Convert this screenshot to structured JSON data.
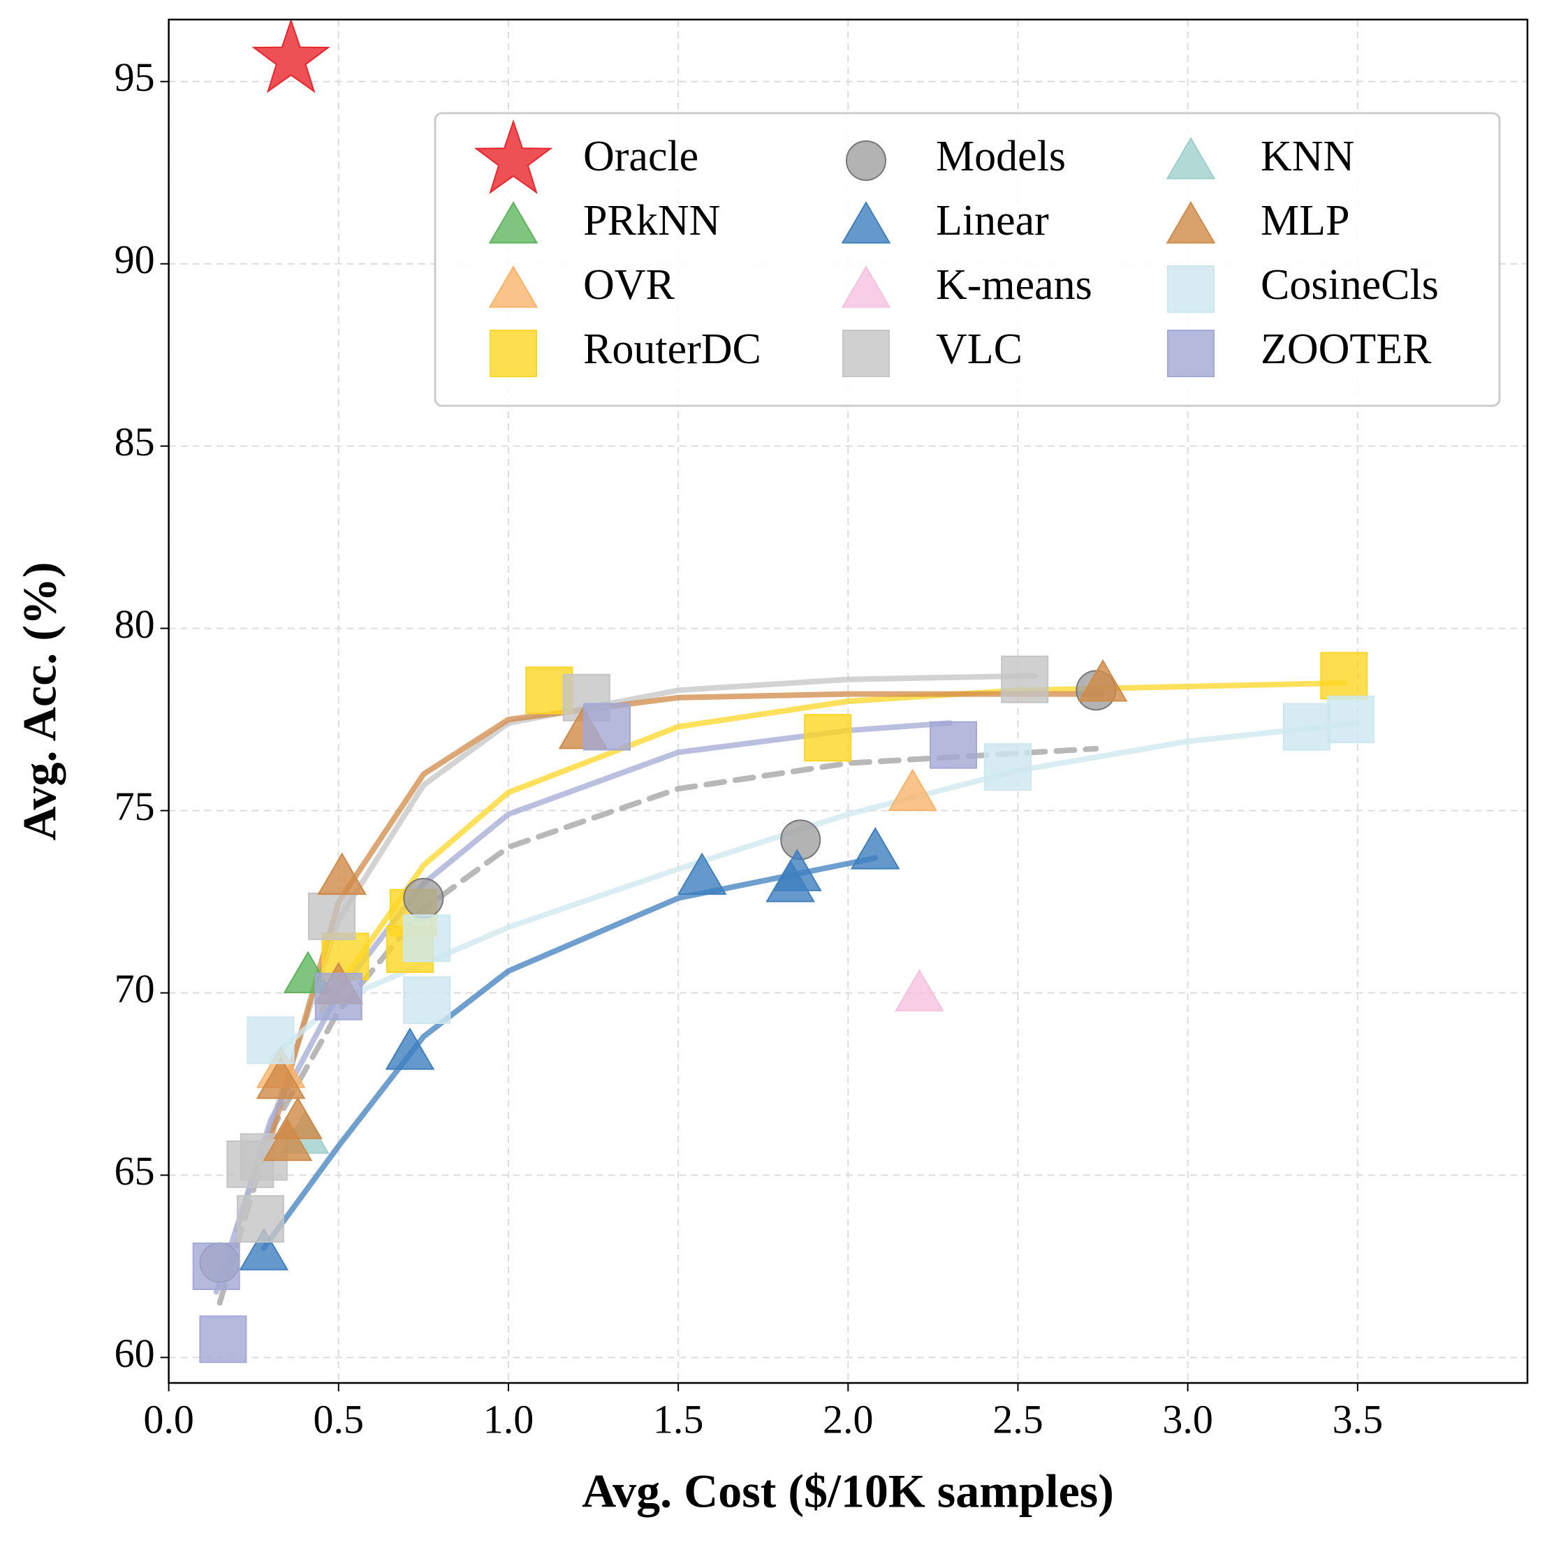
{
  "chart_data": {
    "type": "scatter",
    "xlabel": "Avg. Cost ($/10K samples)",
    "ylabel": "Avg. Acc. (%)",
    "xlim": [
      0,
      4.0
    ],
    "ylim": [
      59.3,
      96.7
    ],
    "xticks": [
      {
        "value": 0,
        "label": "0.0"
      },
      0.5,
      {
        "value": 1,
        "label": "1.0"
      },
      1.5,
      {
        "value": 2,
        "label": "2.0"
      },
      2.5,
      {
        "value": 3,
        "label": "3.0"
      },
      3.5
    ],
    "yticks": [
      60,
      65,
      70,
      75,
      80,
      85,
      90,
      95
    ],
    "grid": true,
    "legend": {
      "loc": "upper right",
      "ncol": 3
    },
    "series": [
      {
        "name": "Oracle",
        "color": "#e8262b",
        "marker": "star",
        "x": [
          0.36
        ],
        "y": [
          95.6
        ]
      },
      {
        "name": "PRkNN",
        "color": "#5fb55f",
        "marker": "triangle",
        "x": [
          0.41
        ],
        "y": [
          70.5
        ]
      },
      {
        "name": "OVR",
        "color": "#f9b46b",
        "marker": "triangle",
        "x": [
          0.33,
          2.19
        ],
        "y": [
          67.9,
          75.5
        ]
      },
      {
        "name": "RouterDC",
        "color": "#fdd623",
        "marker": "square",
        "x": [
          1.12,
          0.52,
          0.72,
          0.71,
          1.94,
          3.46
        ],
        "y": [
          78.3,
          71.0,
          72.2,
          71.2,
          77.0,
          78.7
        ],
        "curve": {
          "x": [
            0.45,
            0.75,
            1.0,
            1.5,
            2.0,
            2.5,
            3.46
          ],
          "y": [
            69.5,
            73.5,
            75.5,
            77.3,
            78.0,
            78.3,
            78.5
          ],
          "dashed": false
        }
      },
      {
        "name": "Models",
        "color": "#a0a0a0",
        "marker": "circle",
        "x": [
          0.15,
          0.75,
          1.86,
          2.73
        ],
        "y": [
          62.6,
          72.6,
          74.2,
          78.3
        ],
        "curve": {
          "x": [
            0.15,
            0.3,
            0.5,
            0.75,
            1.0,
            1.5,
            2.0,
            2.73
          ],
          "y": [
            61.5,
            66.2,
            69.5,
            72.3,
            74.0,
            75.6,
            76.3,
            76.7
          ],
          "dashed": true
        }
      },
      {
        "name": "Linear",
        "color": "#3f7fbf",
        "marker": "triangle",
        "x": [
          0.28,
          0.71,
          1.57,
          1.83,
          1.85,
          2.08
        ],
        "y": [
          62.9,
          68.4,
          73.2,
          73.0,
          73.3,
          73.9
        ],
        "curve": {
          "x": [
            0.28,
            0.5,
            0.75,
            1.0,
            1.5,
            2.08
          ],
          "y": [
            63.0,
            65.8,
            68.8,
            70.6,
            72.6,
            73.7
          ],
          "dashed": false
        }
      },
      {
        "name": "K-means",
        "color": "#f5c2e0",
        "marker": "triangle",
        "x": [
          2.21
        ],
        "y": [
          70.0
        ]
      },
      {
        "name": "VLC",
        "color": "#c4c4c4",
        "marker": "square",
        "x": [
          0.24,
          0.28,
          0.27,
          0.48,
          1.23,
          2.52
        ],
        "y": [
          65.3,
          65.5,
          63.8,
          72.1,
          78.1,
          78.6
        ],
        "curve": {
          "x": [
            0.2,
            0.5,
            0.75,
            1.0,
            1.5,
            2.0,
            2.55
          ],
          "y": [
            63.5,
            72.0,
            75.7,
            77.4,
            78.3,
            78.6,
            78.7
          ],
          "dashed": false
        }
      },
      {
        "name": "KNN",
        "color": "#9fd0cc",
        "marker": "triangle",
        "x": [
          0.4
        ],
        "y": [
          66.1
        ]
      },
      {
        "name": "MLP",
        "color": "#d08a47",
        "marker": "triangle",
        "x": [
          0.33,
          0.35,
          0.38,
          0.51,
          0.5,
          1.22,
          2.75
        ],
        "y": [
          67.6,
          65.9,
          66.5,
          73.2,
          70.2,
          77.2,
          78.5
        ],
        "curve": {
          "x": [
            0.3,
            0.5,
            0.75,
            1.0,
            1.5,
            2.0,
            2.75
          ],
          "y": [
            66.0,
            72.5,
            76.0,
            77.5,
            78.1,
            78.2,
            78.2
          ],
          "dashed": false
        }
      },
      {
        "name": "CosineCls",
        "color": "#cde7ef",
        "marker": "square",
        "x": [
          0.3,
          0.76,
          0.76,
          2.47,
          3.35,
          3.48
        ],
        "y": [
          68.7,
          71.5,
          69.8,
          76.2,
          77.3,
          77.5
        ],
        "curve": {
          "x": [
            0.3,
            0.5,
            1.0,
            1.5,
            2.0,
            2.5,
            3.0,
            3.5
          ],
          "y": [
            68.2,
            69.8,
            71.8,
            73.4,
            74.9,
            76.1,
            76.9,
            77.4
          ],
          "dashed": false
        }
      },
      {
        "name": "ZOOTER",
        "color": "#a3a9d4",
        "marker": "square",
        "x": [
          0.14,
          0.16,
          0.5,
          1.29,
          2.31
        ],
        "y": [
          62.5,
          60.5,
          69.9,
          77.3,
          76.8
        ],
        "curve": {
          "x": [
            0.14,
            0.3,
            0.5,
            0.75,
            1.0,
            1.5,
            2.0,
            2.3
          ],
          "y": [
            61.8,
            66.5,
            70.0,
            73.0,
            74.9,
            76.6,
            77.2,
            77.4
          ],
          "dashed": false
        }
      }
    ]
  }
}
